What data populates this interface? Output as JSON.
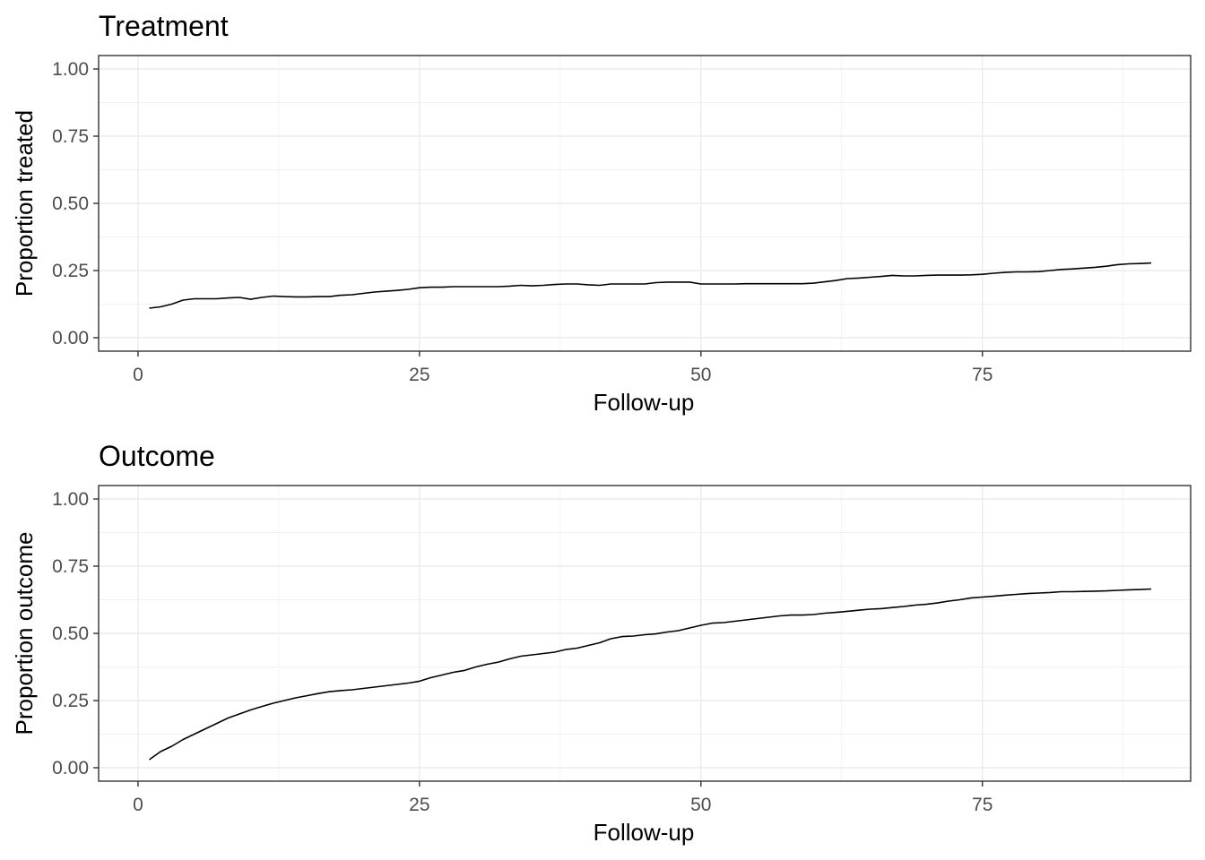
{
  "chart_data": [
    {
      "type": "line",
      "title": "Treatment",
      "xlabel": "Follow-up",
      "ylabel": "Proportion treated",
      "xlim": [
        -3.5,
        93.5
      ],
      "ylim": [
        -0.05,
        1.05
      ],
      "xticks": [
        0,
        25,
        50,
        75
      ],
      "xtick_labels": [
        "0",
        "25",
        "50",
        "75"
      ],
      "yticks": [
        0,
        0.25,
        0.5,
        0.75,
        1
      ],
      "ytick_labels": [
        "0.00",
        "0.25",
        "0.50",
        "0.75",
        "1.00"
      ],
      "grid": true,
      "series": [
        {
          "x": [
            1,
            2,
            3,
            4,
            5,
            6,
            7,
            8,
            9,
            10,
            11,
            12,
            13,
            14,
            15,
            16,
            17,
            18,
            19,
            20,
            21,
            22,
            23,
            24,
            25,
            26,
            27,
            28,
            29,
            30,
            31,
            32,
            33,
            34,
            35,
            36,
            37,
            38,
            39,
            40,
            41,
            42,
            43,
            44,
            45,
            46,
            47,
            48,
            49,
            50,
            51,
            52,
            53,
            54,
            55,
            56,
            57,
            58,
            59,
            60,
            61,
            62,
            63,
            64,
            65,
            66,
            67,
            68,
            69,
            70,
            71,
            72,
            73,
            74,
            75,
            76,
            77,
            78,
            79,
            80,
            81,
            82,
            83,
            84,
            85,
            86,
            87,
            88,
            89,
            90
          ],
          "y": [
            0.11,
            0.115,
            0.125,
            0.14,
            0.145,
            0.145,
            0.145,
            0.148,
            0.15,
            0.143,
            0.15,
            0.155,
            0.153,
            0.152,
            0.152,
            0.153,
            0.153,
            0.158,
            0.16,
            0.165,
            0.17,
            0.173,
            0.176,
            0.18,
            0.186,
            0.188,
            0.188,
            0.19,
            0.19,
            0.19,
            0.19,
            0.19,
            0.192,
            0.195,
            0.193,
            0.195,
            0.198,
            0.2,
            0.2,
            0.197,
            0.195,
            0.2,
            0.2,
            0.2,
            0.2,
            0.205,
            0.207,
            0.207,
            0.207,
            0.2,
            0.2,
            0.2,
            0.2,
            0.201,
            0.201,
            0.201,
            0.201,
            0.201,
            0.201,
            0.203,
            0.208,
            0.213,
            0.22,
            0.222,
            0.225,
            0.228,
            0.232,
            0.23,
            0.23,
            0.232,
            0.233,
            0.233,
            0.233,
            0.234,
            0.236,
            0.24,
            0.243,
            0.245,
            0.245,
            0.246,
            0.25,
            0.254,
            0.256,
            0.259,
            0.262,
            0.266,
            0.272,
            0.275,
            0.276,
            0.278
          ]
        }
      ]
    },
    {
      "type": "line",
      "title": "Outcome",
      "xlabel": "Follow-up",
      "ylabel": "Proportion outcome",
      "xlim": [
        -3.5,
        93.5
      ],
      "ylim": [
        -0.05,
        1.05
      ],
      "xticks": [
        0,
        25,
        50,
        75
      ],
      "xtick_labels": [
        "0",
        "25",
        "50",
        "75"
      ],
      "yticks": [
        0,
        0.25,
        0.5,
        0.75,
        1
      ],
      "ytick_labels": [
        "0.00",
        "0.25",
        "0.50",
        "0.75",
        "1.00"
      ],
      "grid": true,
      "series": [
        {
          "x": [
            1,
            2,
            3,
            4,
            5,
            6,
            7,
            8,
            9,
            10,
            11,
            12,
            13,
            14,
            15,
            16,
            17,
            18,
            19,
            20,
            21,
            22,
            23,
            24,
            25,
            26,
            27,
            28,
            29,
            30,
            31,
            32,
            33,
            34,
            35,
            36,
            37,
            38,
            39,
            40,
            41,
            42,
            43,
            44,
            45,
            46,
            47,
            48,
            49,
            50,
            51,
            52,
            53,
            54,
            55,
            56,
            57,
            58,
            59,
            60,
            61,
            62,
            63,
            64,
            65,
            66,
            67,
            68,
            69,
            70,
            71,
            72,
            73,
            74,
            75,
            76,
            77,
            78,
            79,
            80,
            81,
            82,
            83,
            84,
            85,
            86,
            87,
            88,
            89,
            90
          ],
          "y": [
            0.03,
            0.06,
            0.08,
            0.105,
            0.125,
            0.145,
            0.165,
            0.185,
            0.2,
            0.215,
            0.228,
            0.24,
            0.25,
            0.26,
            0.268,
            0.276,
            0.283,
            0.287,
            0.29,
            0.295,
            0.3,
            0.305,
            0.31,
            0.315,
            0.322,
            0.335,
            0.345,
            0.355,
            0.362,
            0.375,
            0.385,
            0.393,
            0.405,
            0.415,
            0.42,
            0.425,
            0.43,
            0.44,
            0.445,
            0.455,
            0.465,
            0.48,
            0.488,
            0.49,
            0.495,
            0.498,
            0.505,
            0.51,
            0.52,
            0.53,
            0.538,
            0.54,
            0.545,
            0.55,
            0.555,
            0.56,
            0.565,
            0.568,
            0.568,
            0.57,
            0.575,
            0.578,
            0.582,
            0.586,
            0.59,
            0.592,
            0.596,
            0.6,
            0.605,
            0.608,
            0.613,
            0.62,
            0.625,
            0.632,
            0.635,
            0.638,
            0.642,
            0.645,
            0.648,
            0.65,
            0.652,
            0.655,
            0.655,
            0.656,
            0.657,
            0.658,
            0.66,
            0.662,
            0.663,
            0.665
          ]
        }
      ]
    }
  ]
}
